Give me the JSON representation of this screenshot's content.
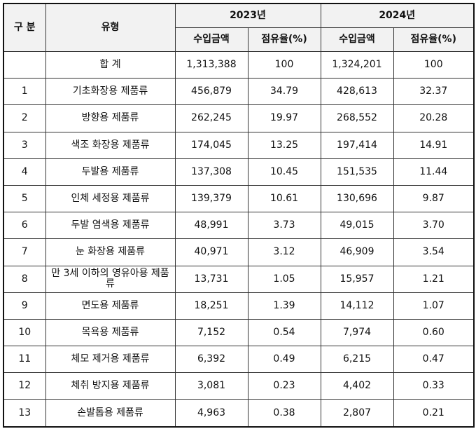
{
  "headers": {
    "category": "구 분",
    "type": "유형",
    "year1": "2023년",
    "year2": "2024년",
    "amount": "수입금액",
    "share": "점유율(%)"
  },
  "rows": [
    {
      "no": "",
      "type": "합 계",
      "a1": "1,313,388",
      "s1": "100",
      "a2": "1,324,201",
      "s2": "100"
    },
    {
      "no": "1",
      "type": "기초화장용 제품류",
      "a1": "456,879",
      "s1": "34.79",
      "a2": "428,613",
      "s2": "32.37"
    },
    {
      "no": "2",
      "type": "방향용 제품류",
      "a1": "262,245",
      "s1": "19.97",
      "a2": "268,552",
      "s2": "20.28"
    },
    {
      "no": "3",
      "type": "색조 화장용 제품류",
      "a1": "174,045",
      "s1": "13.25",
      "a2": "197,414",
      "s2": "14.91"
    },
    {
      "no": "4",
      "type": "두발용 제품류",
      "a1": "137,308",
      "s1": "10.45",
      "a2": "151,535",
      "s2": "11.44"
    },
    {
      "no": "5",
      "type": "인체 세정용 제품류",
      "a1": "139,379",
      "s1": "10.61",
      "a2": "130,696",
      "s2": "9.87"
    },
    {
      "no": "6",
      "type": "두발 염색용 제품류",
      "a1": "48,991",
      "s1": "3.73",
      "a2": "49,015",
      "s2": "3.70"
    },
    {
      "no": "7",
      "type": "눈 화장용 제품류",
      "a1": "40,971",
      "s1": "3.12",
      "a2": "46,909",
      "s2": "3.54"
    },
    {
      "no": "8",
      "type": "만 3세 이하의 영유아용 제품류",
      "a1": "13,731",
      "s1": "1.05",
      "a2": "15,957",
      "s2": "1.21"
    },
    {
      "no": "9",
      "type": "면도용 제품류",
      "a1": "18,251",
      "s1": "1.39",
      "a2": "14,112",
      "s2": "1.07"
    },
    {
      "no": "10",
      "type": "목욕용 제품류",
      "a1": "7,152",
      "s1": "0.54",
      "a2": "7,974",
      "s2": "0.60"
    },
    {
      "no": "11",
      "type": "체모 제거용 제품류",
      "a1": "6,392",
      "s1": "0.49",
      "a2": "6,215",
      "s2": "0.47"
    },
    {
      "no": "12",
      "type": "체취 방지용 제품류",
      "a1": "3,081",
      "s1": "0.23",
      "a2": "4,402",
      "s2": "0.33"
    },
    {
      "no": "13",
      "type": "손발톱용 제품류",
      "a1": "4,963",
      "s1": "0.38",
      "a2": "2,807",
      "s2": "0.21"
    }
  ]
}
